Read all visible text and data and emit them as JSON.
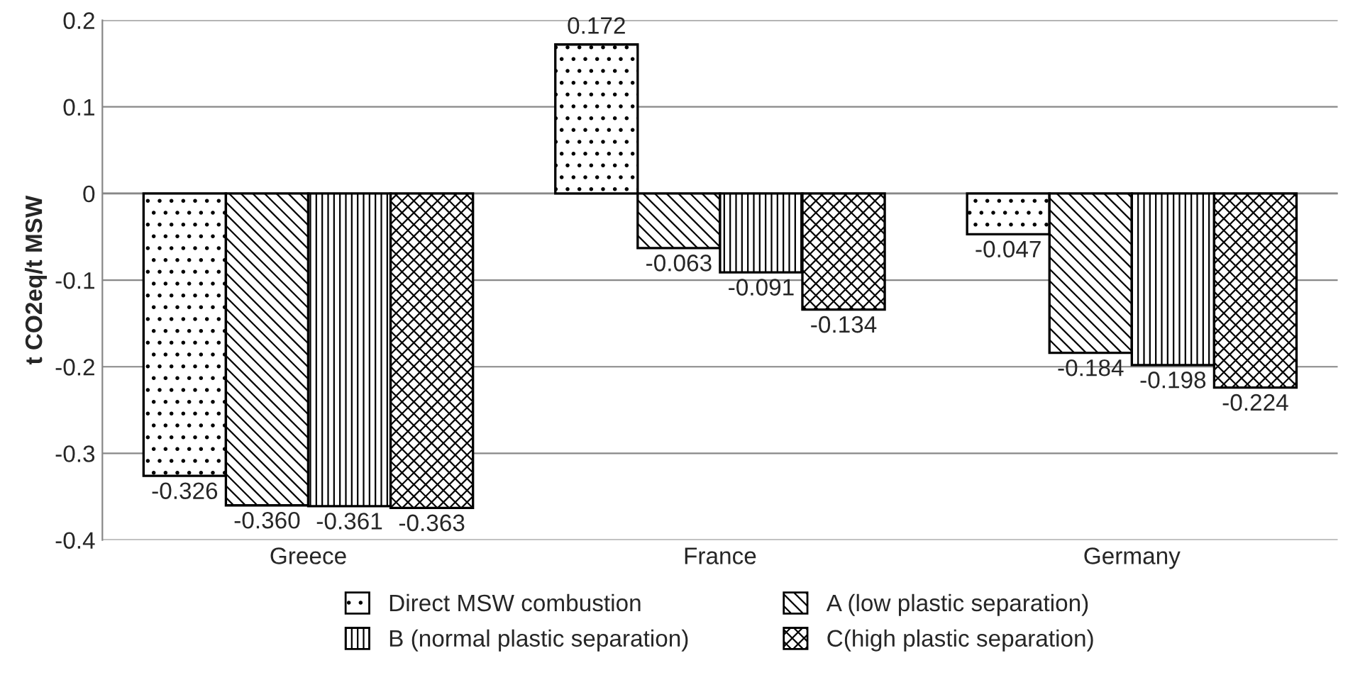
{
  "chart_data": {
    "type": "bar",
    "ylabel": "t CO2eq/t MSW",
    "categories": [
      "Greece",
      "France",
      "Germany"
    ],
    "series": [
      {
        "name": "Direct MSW combustion",
        "color": "#000000",
        "values": [
          -0.326,
          0.172,
          -0.047
        ],
        "value_labels": [
          "-0.326",
          "0.172",
          "-0.047"
        ]
      },
      {
        "name": "A (low plastic separation)",
        "color": "#000000",
        "values": [
          -0.36,
          -0.063,
          -0.184
        ],
        "value_labels": [
          "-0.360",
          "-0.063",
          "-0.184"
        ]
      },
      {
        "name": "B (normal plastic separation)",
        "color": "#000000",
        "values": [
          -0.361,
          -0.091,
          -0.198
        ],
        "value_labels": [
          "-0.361",
          "-0.091",
          "-0.198"
        ]
      },
      {
        "name": "C(high plastic separation)",
        "color": "#000000",
        "values": [
          -0.363,
          -0.134,
          -0.224
        ],
        "value_labels": [
          "-0.363",
          "-0.134",
          "-0.224"
        ]
      }
    ],
    "ylim": [
      -0.4,
      0.2
    ],
    "yticks": [
      -0.4,
      -0.3,
      -0.2,
      -0.1,
      0,
      0.1,
      0.2
    ],
    "grid": "y",
    "legend": "bottom"
  }
}
